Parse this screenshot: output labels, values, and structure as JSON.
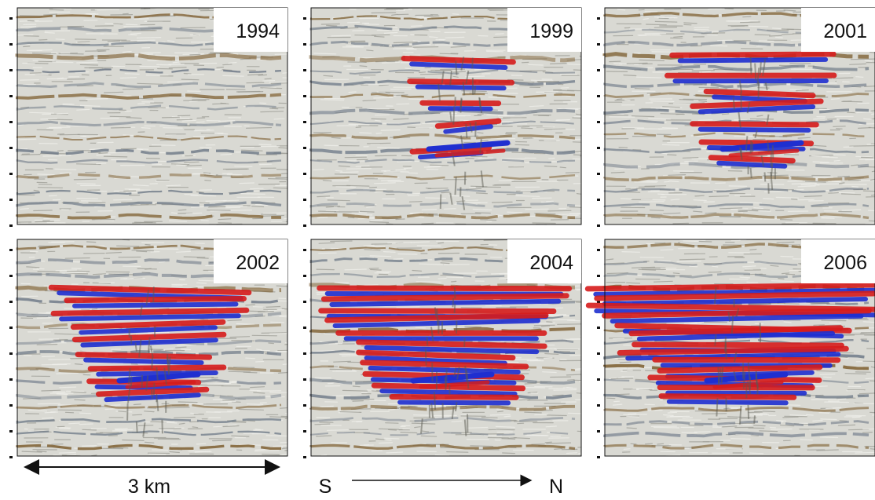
{
  "figure": {
    "panels": [
      {
        "year": "1994",
        "anomaly_level": 0
      },
      {
        "year": "1999",
        "anomaly_level": 1
      },
      {
        "year": "2001",
        "anomaly_level": 2
      },
      {
        "year": "2002",
        "anomaly_level": 3
      },
      {
        "year": "2004",
        "anomaly_level": 4
      },
      {
        "year": "2006",
        "anomaly_level": 5
      }
    ],
    "scale_label": "3 km",
    "direction_start": "S",
    "direction_end": "N",
    "colors": {
      "background_noise": "#d9d9d3",
      "brown_reflector": "#7a5a2a",
      "grey_reflector": "#6f7a88",
      "red_anomaly": "#d61c1c",
      "blue_anomaly": "#1f2fd0",
      "label_box": "#ffffff",
      "axis": "#111111"
    }
  }
}
